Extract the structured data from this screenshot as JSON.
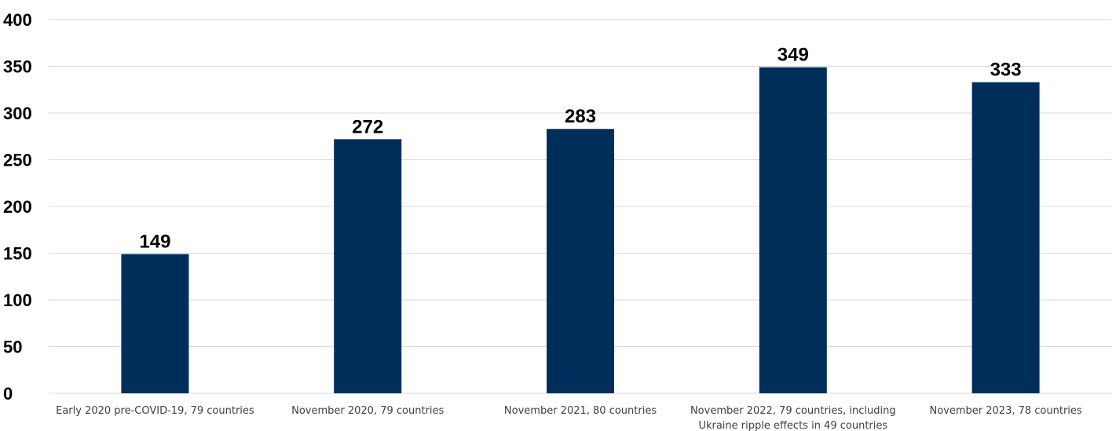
{
  "chart_data": {
    "type": "bar",
    "title": "",
    "xlabel": "",
    "ylabel": "",
    "categories": [
      [
        "Early 2020 pre-COVID-19, 79 countries"
      ],
      [
        "November 2020, 79 countries"
      ],
      [
        "November 2021, 80 countries"
      ],
      [
        "November 2022, 79 countries, including",
        "Ukraine ripple effects in 49 countries"
      ],
      [
        "November 2023, 78 countries"
      ]
    ],
    "values": [
      149,
      272,
      283,
      349,
      333
    ],
    "data_labels": [
      "149",
      "272",
      "283",
      "349",
      "333"
    ],
    "ylim": [
      0,
      400
    ],
    "yticks": [
      0,
      50,
      100,
      150,
      200,
      250,
      300,
      350,
      400
    ],
    "grid": true,
    "legend": "none",
    "colors": {
      "bar": "#002e5a",
      "grid": "#d9d9d9"
    }
  }
}
